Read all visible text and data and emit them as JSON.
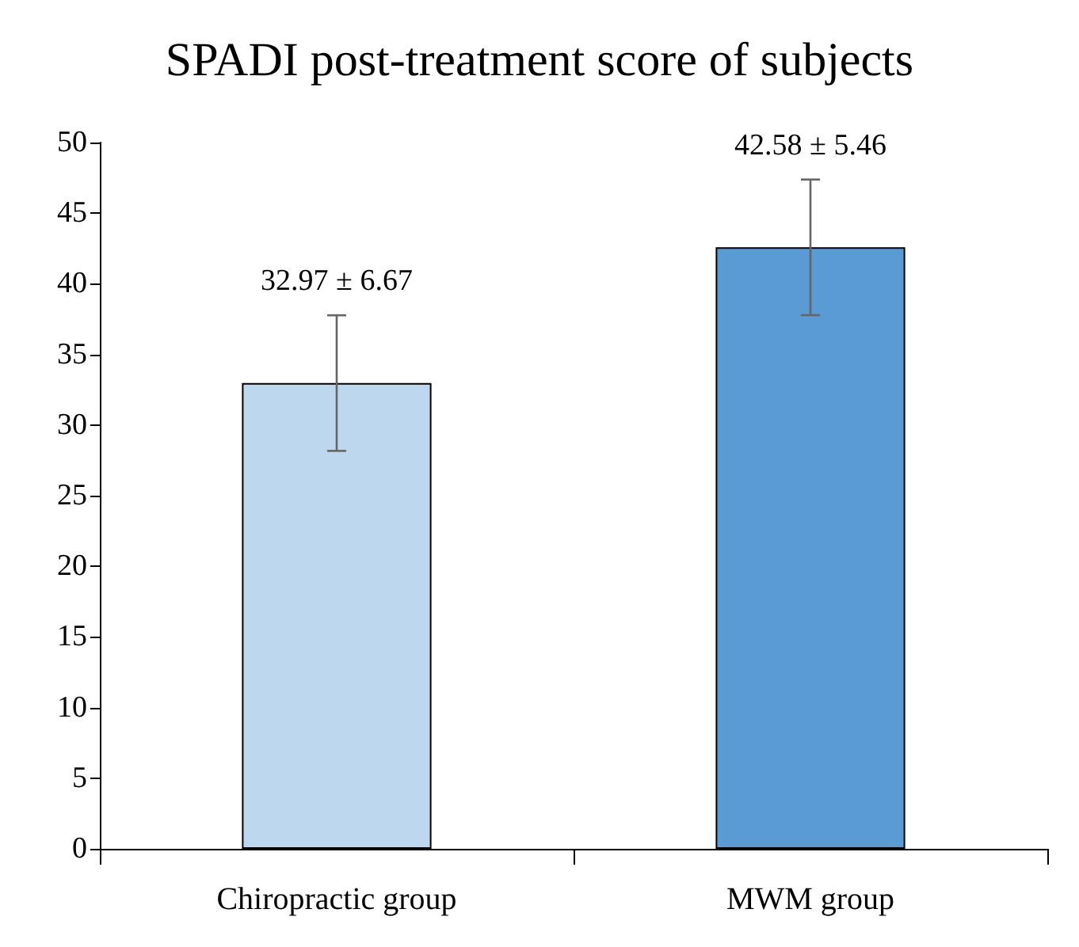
{
  "chart_data": {
    "type": "bar",
    "title": "SPADI post-treatment score of subjects",
    "categories": [
      "Chiropractic group",
      "MWM group"
    ],
    "values": [
      32.97,
      42.58
    ],
    "colors": [
      "#bdd7ee",
      "#5b9bd5"
    ],
    "errors": [
      4.8,
      4.8
    ],
    "value_labels": [
      "32.97 ± 6.67",
      "42.58 ± 5.46"
    ],
    "ylim": [
      0,
      50
    ],
    "yticks": [
      0,
      5,
      10,
      15,
      20,
      25,
      30,
      35,
      40,
      45,
      50
    ],
    "grid": false
  }
}
